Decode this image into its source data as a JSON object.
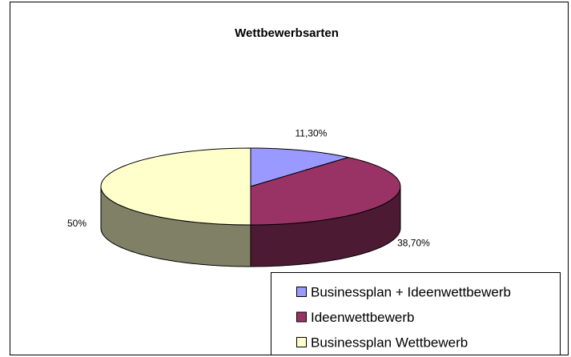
{
  "chart_data": {
    "type": "pie",
    "title": "Wettbewerbsarten",
    "categories": [
      "Businessplan + Ideenwettbewerb",
      "Ideenwettbewerb",
      "Businessplan Wettbewerb"
    ],
    "values": [
      11.3,
      38.7,
      50
    ],
    "value_labels": [
      "11,30%",
      "38,70%",
      "50%"
    ],
    "colors": [
      "#9999ff",
      "#993366",
      "#ffffcc"
    ],
    "side_colors": [
      "#5c5c99",
      "#4d1a33",
      "#808066"
    ],
    "legend": "bottom-right",
    "three_d": true
  }
}
